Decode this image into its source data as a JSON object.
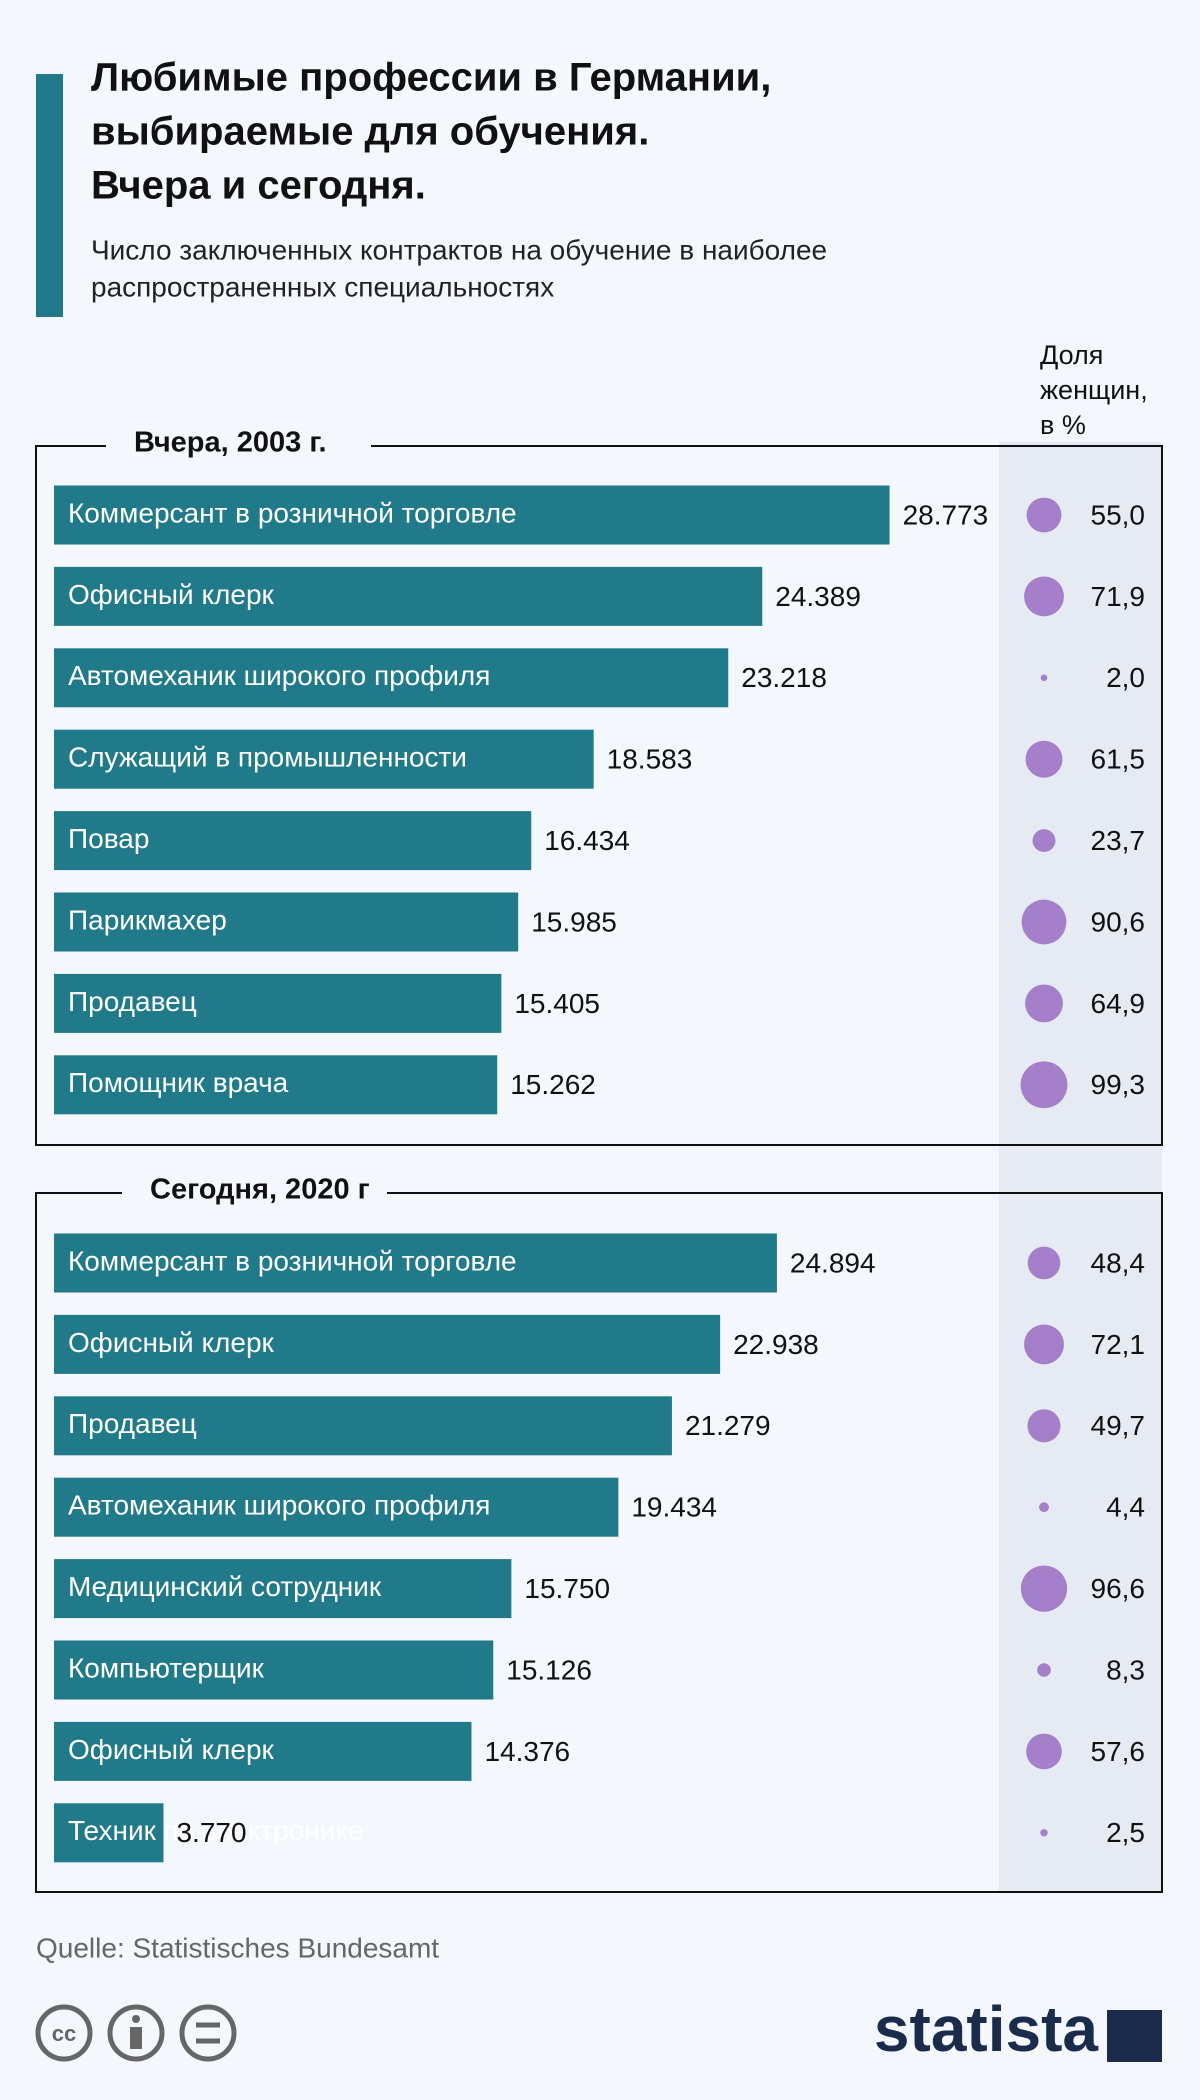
{
  "title_lines": [
    "Любимые профессии в Германии,",
    "выбираемые для обучения.",
    "Вчера и сегодня."
  ],
  "subtitle_lines": [
    "Число заключенных контрактов на обучение в наиболее",
    "распространенных специальностях"
  ],
  "share_header": [
    "Доля",
    "женщин,",
    "в %"
  ],
  "source": "Quelle: Statistisches Bundesamt",
  "brand": "statista",
  "chart_data": [
    {
      "type": "bar",
      "title": "Вчера, 2003 г.",
      "color": "#217a8a",
      "categories": [
        "Коммерсант в розничной торговле",
        "Офисный клерк",
        "Автомеханик широкого профиля",
        "Служащий в промышленности",
        "Повар",
        "Парикмахер",
        "Продавец",
        "Помощник врача"
      ],
      "values": [
        28773,
        24389,
        23218,
        18583,
        16434,
        15985,
        15405,
        15262
      ],
      "value_labels": [
        "28.773",
        "24.389",
        "23.218",
        "18.583",
        "16.434",
        "15.985",
        "15.405",
        "15.262"
      ],
      "women_share": {
        "color": "#a57fc9",
        "values": [
          55.0,
          71.9,
          2.0,
          61.5,
          23.7,
          90.6,
          64.9,
          99.3
        ],
        "value_labels": [
          "55,0",
          "71,9",
          "2,0",
          "61,5",
          "23,7",
          "90,6",
          "64,9",
          "99,3"
        ]
      }
    },
    {
      "type": "bar",
      "title": "Сегодня, 2020 г",
      "color": "#217a8a",
      "categories": [
        "Коммерсант в розничной торговле",
        "Офисный клерк",
        "Продавец",
        "Автомеханик широкого профиля",
        "Медицинский сотрудник",
        "Компьютерщик",
        "Офисный клерк",
        "Техник по электронике"
      ],
      "values": [
        24894,
        22938,
        21279,
        19434,
        15750,
        15126,
        14376,
        3770
      ],
      "value_labels": [
        "24.894",
        "22.938",
        "21.279",
        "19.434",
        "15.750",
        "15.126",
        "14.376",
        "3.770"
      ],
      "women_share": {
        "color": "#a57fc9",
        "values": [
          48.4,
          72.1,
          49.7,
          4.4,
          96.6,
          8.3,
          57.6,
          2.5
        ],
        "value_labels": [
          "48,4",
          "72,1",
          "49,7",
          "4,4",
          "96,6",
          "8,3",
          "57,6",
          "2,5"
        ]
      }
    }
  ]
}
